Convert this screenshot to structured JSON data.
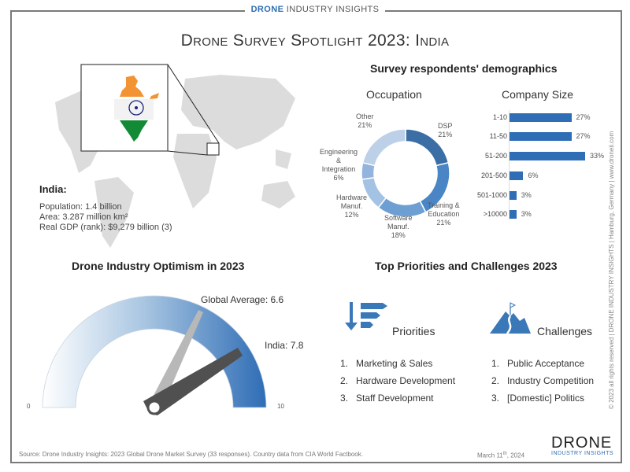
{
  "brand": {
    "bold": "DRONE",
    "rest": " INDUSTRY INSIGHTS"
  },
  "title": "Drone Survey Spotlight 2023: India",
  "country": {
    "name": "India:",
    "facts": [
      "Population: 1.4 billion",
      "Area: 3.287 million km²",
      "Real GDP (rank): $9,279 billion (3)"
    ]
  },
  "demographics": {
    "title": "Survey respondents' demographics",
    "occupation_title": "Occupation",
    "company_title": "Company Size"
  },
  "chart_data": [
    {
      "type": "pie",
      "title": "Occupation",
      "categories": [
        "DSP",
        "Training & Education",
        "Software Manuf.",
        "Hardware Manuf.",
        "Engineering & Integration",
        "Other"
      ],
      "values": [
        21,
        21,
        18,
        12,
        6,
        21
      ],
      "labels": [
        "DSP\n21%",
        "Training &\nEducation\n21%",
        "Software\nManuf.\n18%",
        "Hardware\nManuf.\n12%",
        "Engineering\n&\nIntegration\n6%",
        "Other\n21%"
      ],
      "colors": [
        "#3a6ea5",
        "#4a86c5",
        "#6e9fd3",
        "#a4c2e4",
        "#92b4dd",
        "#bcd0e8"
      ]
    },
    {
      "type": "bar",
      "orientation": "horizontal",
      "title": "Company Size",
      "categories": [
        "1-10",
        "11-50",
        "51-200",
        "201-500",
        "501-1000",
        ">10000"
      ],
      "values": [
        27,
        27,
        33,
        6,
        3,
        3
      ],
      "value_labels": [
        "27%",
        "27%",
        "33%",
        "6%",
        "3%",
        "3%"
      ],
      "color": "#2f6db5"
    },
    {
      "type": "gauge",
      "title": "Drone Industry Optimism in 2023",
      "range": [
        0,
        10
      ],
      "min_label": "0",
      "max_label": "10",
      "needles": [
        {
          "name": "Global Average",
          "value": 6.6,
          "label": "Global Average: 6.6",
          "color": "#b8b8b8"
        },
        {
          "name": "India",
          "value": 7.8,
          "label": "India: 7.8",
          "color": "#505050"
        }
      ]
    }
  ],
  "optimism": {
    "title": "Drone Industry Optimism in 2023",
    "global_label": "Global Average: 6.6",
    "india_label": "India: 7.8",
    "min": "0",
    "max": "10"
  },
  "priorities": {
    "section_title": "Top Priorities and Challenges 2023",
    "priorities_title": "Priorities",
    "priorities": [
      {
        "n": "1.",
        "text": "Marketing & Sales"
      },
      {
        "n": "2.",
        "text": "Hardware Development"
      },
      {
        "n": "3.",
        "text": "Staff Development"
      }
    ],
    "challenges_title": "Challenges",
    "challenges": [
      {
        "n": "1.",
        "text": "Public Acceptance"
      },
      {
        "n": "2.",
        "text": "Industry Competition"
      },
      {
        "n": "3.",
        "text": "[Domestic] Politics"
      }
    ]
  },
  "side_note": "© 2023 all rights reserved  |  DRONE INDUSTRY INSIGHTS  |  Hamburg, Germany  |  www.droneii.com",
  "footer": {
    "source": "Source: Drone Industry Insights: 2023 Global Drone Market Survey (33 responses). Country data from CIA World Factbook.",
    "date_pre": "March 11",
    "date_sup": "th",
    "date_post": ", 2024",
    "logo_big": "DRONE",
    "logo_small": "INDUSTRY  INSIGHTS"
  }
}
